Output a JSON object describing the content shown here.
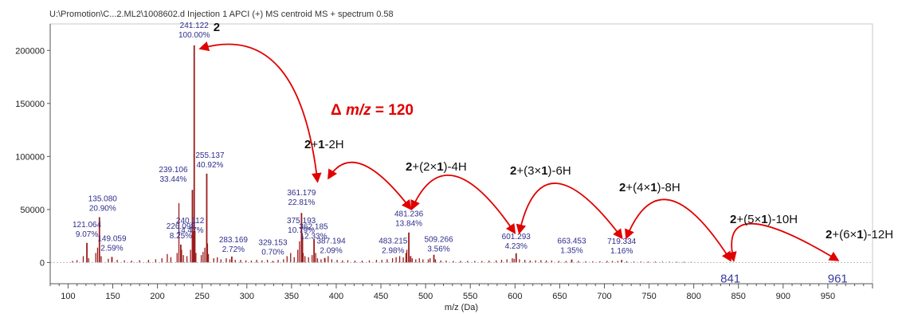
{
  "chart_data": {
    "type": "bar",
    "title": "U:\\Promotion\\C...2.ML2\\1008602.d Injection 1 APCI (+) MS centroid MS + spectrum 0.58",
    "xlabel": "m/z (Da)",
    "ylabel": "",
    "xlim": [
      80,
      1000
    ],
    "ylim": [
      -20000,
      225000
    ],
    "x_ticks": [
      "100",
      "150",
      "200",
      "250",
      "300",
      "350",
      "400",
      "450",
      "500",
      "550",
      "600",
      "650",
      "700",
      "750",
      "800",
      "850",
      "900",
      "950"
    ],
    "y_ticks": [
      "0",
      "50000",
      "100000",
      "150000",
      "200000"
    ],
    "grid": false,
    "bar_color": "#9b1b1b",
    "annotation_color": "#e00000",
    "peaks": [
      {
        "x": 121.064,
        "y": 18500,
        "label": [
          "121.064",
          "9.07%"
        ]
      },
      {
        "x": 135.08,
        "y": 42800,
        "label": [
          "135.080",
          "20.90%"
        ]
      },
      {
        "x": 149.059,
        "y": 5300,
        "label": [
          "149.059",
          "2.59%"
        ]
      },
      {
        "x": 226.098,
        "y": 16900,
        "label": [
          "226.098",
          "8.25%"
        ]
      },
      {
        "x": 239.106,
        "y": 68500,
        "label": [
          "239.106",
          "33.44%"
        ]
      },
      {
        "x": 240.112,
        "y": 29600,
        "label": [
          "240.112",
          "14.47%"
        ]
      },
      {
        "x": 241.122,
        "y": 204800,
        "label": [
          "241.122",
          "100.00%"
        ]
      },
      {
        "x": 255.137,
        "y": 83800,
        "label": [
          "255.137",
          "40.92%"
        ]
      },
      {
        "x": 283.169,
        "y": 5600,
        "label": [
          "283.169",
          "2.72%"
        ]
      },
      {
        "x": 329.153,
        "y": 1400,
        "label": [
          "329.153",
          "0.70%"
        ]
      },
      {
        "x": 361.179,
        "y": 46700,
        "label": [
          "361.179",
          "22.81%"
        ]
      },
      {
        "x": 362.185,
        "y": 25300,
        "label": [
          "362.185",
          "12.33%"
        ]
      },
      {
        "x": 375.193,
        "y": 22100,
        "label": [
          "375.193",
          "10.79%"
        ]
      },
      {
        "x": 387.194,
        "y": 4300,
        "label": [
          "387.194",
          "2.09%"
        ]
      },
      {
        "x": 481.236,
        "y": 28300,
        "label": [
          "481.236",
          "13.84%"
        ]
      },
      {
        "x": 483.215,
        "y": 6100,
        "label": [
          "483.215",
          "2.98%"
        ]
      },
      {
        "x": 509.266,
        "y": 7300,
        "label": [
          "509.266",
          "3.56%"
        ]
      },
      {
        "x": 601.293,
        "y": 8700,
        "label": [
          "601.293",
          "4.23%"
        ]
      },
      {
        "x": 663.453,
        "y": 2800,
        "label": [
          "663.453",
          "1.35%"
        ]
      },
      {
        "x": 719.334,
        "y": 2400,
        "label": [
          "719.334",
          "1.16%"
        ]
      }
    ],
    "minor_peaks": [
      {
        "x": 105,
        "y": 1500
      },
      {
        "x": 110,
        "y": 2200
      },
      {
        "x": 117,
        "y": 6000
      },
      {
        "x": 123,
        "y": 4000
      },
      {
        "x": 131,
        "y": 9000
      },
      {
        "x": 133,
        "y": 14000
      },
      {
        "x": 137,
        "y": 6000
      },
      {
        "x": 145,
        "y": 3500
      },
      {
        "x": 155,
        "y": 2500
      },
      {
        "x": 163,
        "y": 2000
      },
      {
        "x": 171,
        "y": 1800
      },
      {
        "x": 180,
        "y": 2200
      },
      {
        "x": 190,
        "y": 2500
      },
      {
        "x": 198,
        "y": 3000
      },
      {
        "x": 205,
        "y": 4000
      },
      {
        "x": 211,
        "y": 8000
      },
      {
        "x": 215,
        "y": 5000
      },
      {
        "x": 222,
        "y": 9000
      },
      {
        "x": 224,
        "y": 56000
      },
      {
        "x": 227,
        "y": 12000
      },
      {
        "x": 229,
        "y": 7000
      },
      {
        "x": 233,
        "y": 6000
      },
      {
        "x": 237,
        "y": 12000
      },
      {
        "x": 242,
        "y": 30000
      },
      {
        "x": 243,
        "y": 9000
      },
      {
        "x": 249,
        "y": 7000
      },
      {
        "x": 251,
        "y": 10000
      },
      {
        "x": 253,
        "y": 14000
      },
      {
        "x": 256,
        "y": 18000
      },
      {
        "x": 257,
        "y": 8000
      },
      {
        "x": 263,
        "y": 4000
      },
      {
        "x": 267,
        "y": 5000
      },
      {
        "x": 271,
        "y": 3000
      },
      {
        "x": 277,
        "y": 4000
      },
      {
        "x": 281,
        "y": 3000
      },
      {
        "x": 287,
        "y": 2500
      },
      {
        "x": 293,
        "y": 2500
      },
      {
        "x": 299,
        "y": 2000
      },
      {
        "x": 305,
        "y": 1800
      },
      {
        "x": 311,
        "y": 2500
      },
      {
        "x": 317,
        "y": 2000
      },
      {
        "x": 323,
        "y": 2500
      },
      {
        "x": 335,
        "y": 2500
      },
      {
        "x": 341,
        "y": 3000
      },
      {
        "x": 345,
        "y": 6000
      },
      {
        "x": 349,
        "y": 9000
      },
      {
        "x": 353,
        "y": 5000
      },
      {
        "x": 357,
        "y": 12000
      },
      {
        "x": 359,
        "y": 20000
      },
      {
        "x": 363,
        "y": 9000
      },
      {
        "x": 365,
        "y": 6000
      },
      {
        "x": 369,
        "y": 5000
      },
      {
        "x": 373,
        "y": 7000
      },
      {
        "x": 377,
        "y": 9000
      },
      {
        "x": 379,
        "y": 4000
      },
      {
        "x": 383,
        "y": 3000
      },
      {
        "x": 391,
        "y": 6000
      },
      {
        "x": 395,
        "y": 3000
      },
      {
        "x": 401,
        "y": 2500
      },
      {
        "x": 407,
        "y": 2000
      },
      {
        "x": 413,
        "y": 2200
      },
      {
        "x": 421,
        "y": 1800
      },
      {
        "x": 429,
        "y": 1800
      },
      {
        "x": 437,
        "y": 2000
      },
      {
        "x": 445,
        "y": 2500
      },
      {
        "x": 451,
        "y": 2500
      },
      {
        "x": 457,
        "y": 3000
      },
      {
        "x": 463,
        "y": 4000
      },
      {
        "x": 467,
        "y": 5000
      },
      {
        "x": 471,
        "y": 6000
      },
      {
        "x": 475,
        "y": 5000
      },
      {
        "x": 478,
        "y": 9000
      },
      {
        "x": 479,
        "y": 12000
      },
      {
        "x": 485,
        "y": 4000
      },
      {
        "x": 489,
        "y": 3000
      },
      {
        "x": 493,
        "y": 4000
      },
      {
        "x": 497,
        "y": 3000
      },
      {
        "x": 503,
        "y": 3000
      },
      {
        "x": 505,
        "y": 4000
      },
      {
        "x": 511,
        "y": 3000
      },
      {
        "x": 517,
        "y": 2000
      },
      {
        "x": 523,
        "y": 1800
      },
      {
        "x": 531,
        "y": 1500
      },
      {
        "x": 539,
        "y": 1500
      },
      {
        "x": 547,
        "y": 1500
      },
      {
        "x": 555,
        "y": 1500
      },
      {
        "x": 563,
        "y": 1500
      },
      {
        "x": 571,
        "y": 1800
      },
      {
        "x": 579,
        "y": 2000
      },
      {
        "x": 585,
        "y": 2500
      },
      {
        "x": 591,
        "y": 3000
      },
      {
        "x": 597,
        "y": 4000
      },
      {
        "x": 599,
        "y": 3500
      },
      {
        "x": 605,
        "y": 3000
      },
      {
        "x": 611,
        "y": 2500
      },
      {
        "x": 617,
        "y": 2000
      },
      {
        "x": 623,
        "y": 2000
      },
      {
        "x": 629,
        "y": 2200
      },
      {
        "x": 635,
        "y": 2000
      },
      {
        "x": 641,
        "y": 1800
      },
      {
        "x": 649,
        "y": 1500
      },
      {
        "x": 657,
        "y": 1500
      },
      {
        "x": 671,
        "y": 1500
      },
      {
        "x": 679,
        "y": 1200
      },
      {
        "x": 687,
        "y": 1200
      },
      {
        "x": 695,
        "y": 1200
      },
      {
        "x": 703,
        "y": 1500
      },
      {
        "x": 709,
        "y": 1500
      },
      {
        "x": 715,
        "y": 1500
      },
      {
        "x": 725,
        "y": 1200
      },
      {
        "x": 733,
        "y": 1000
      },
      {
        "x": 741,
        "y": 1000
      },
      {
        "x": 749,
        "y": 900
      },
      {
        "x": 757,
        "y": 900
      },
      {
        "x": 765,
        "y": 800
      },
      {
        "x": 773,
        "y": 800
      },
      {
        "x": 781,
        "y": 700
      },
      {
        "x": 789,
        "y": 700
      },
      {
        "x": 797,
        "y": 600
      }
    ],
    "annotations": {
      "parent_label": "2",
      "delta": {
        "prefix": "Δ ",
        "symbol": "m/z",
        "value": " = 120"
      },
      "series": [
        {
          "parts": [
            {
              "t": "2",
              "b": true
            },
            {
              "t": "+",
              "b": false
            },
            {
              "t": "1",
              "b": true
            },
            {
              "t": "-2H",
              "b": false
            }
          ]
        },
        {
          "parts": [
            {
              "t": "2",
              "b": true
            },
            {
              "t": "+(2×",
              "b": false
            },
            {
              "t": "1",
              "b": true
            },
            {
              "t": ")-4H",
              "b": false
            }
          ]
        },
        {
          "parts": [
            {
              "t": "2",
              "b": true
            },
            {
              "t": "+(3×",
              "b": false
            },
            {
              "t": "1",
              "b": true
            },
            {
              "t": ")-6H",
              "b": false
            }
          ]
        },
        {
          "parts": [
            {
              "t": "2",
              "b": true
            },
            {
              "t": "+(4×",
              "b": false
            },
            {
              "t": "1",
              "b": true
            },
            {
              "t": ")-8H",
              "b": false
            }
          ]
        },
        {
          "parts": [
            {
              "t": "2",
              "b": true
            },
            {
              "t": "+(5×",
              "b": false
            },
            {
              "t": "1",
              "b": true
            },
            {
              "t": ")-10H",
              "b": false
            }
          ]
        },
        {
          "parts": [
            {
              "t": "2",
              "b": true
            },
            {
              "t": "+(6×",
              "b": false
            },
            {
              "t": "1",
              "b": true
            },
            {
              "t": ")-12H",
              "b": false
            }
          ]
        }
      ],
      "extrapolated": [
        "841",
        "961"
      ]
    }
  }
}
